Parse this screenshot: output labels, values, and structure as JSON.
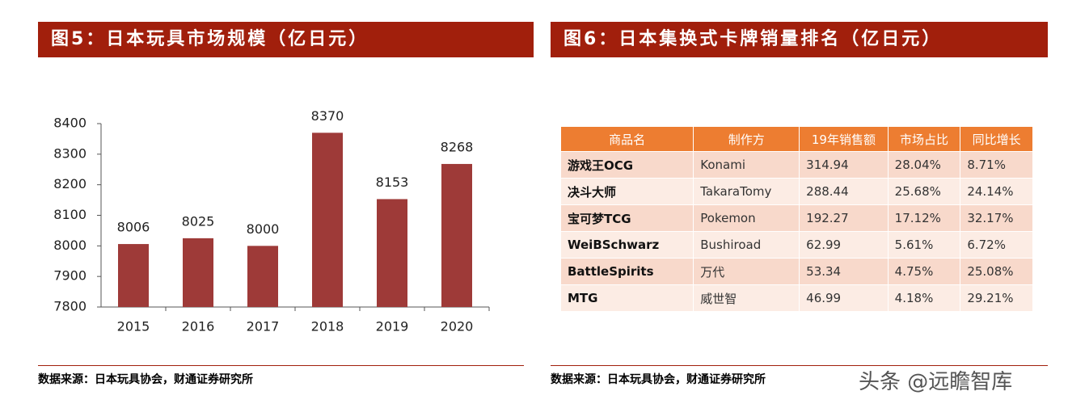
{
  "chart_data": {
    "type": "bar",
    "title": "图5：日本玩具市场规模（亿日元）",
    "categories": [
      "2015",
      "2016",
      "2017",
      "2018",
      "2019",
      "2020"
    ],
    "values": [
      8006,
      8025,
      8000,
      8370,
      8153,
      8268
    ],
    "color": "#9e3a38",
    "ylim": [
      7800,
      8400
    ],
    "yticks": [
      7800,
      7900,
      8000,
      8100,
      8200,
      8300,
      8400
    ],
    "grid": false
  },
  "table": {
    "title": "图6：日本集换式卡牌销量排名（亿日元）",
    "columns": [
      "商品名",
      "制作方",
      "19年销售额",
      "市场占比",
      "同比增长"
    ],
    "rows": [
      [
        "游戏王OCG",
        "Konami",
        "314.94",
        "28.04%",
        "8.71%"
      ],
      [
        "决斗大师",
        "TakaraTomy",
        "288.44",
        "25.68%",
        "24.14%"
      ],
      [
        "宝可梦TCG",
        "Pokemon",
        "192.27",
        "17.12%",
        "32.17%"
      ],
      [
        "WeiBSchwarz",
        "Bushiroad",
        "62.99",
        "5.61%",
        "6.72%"
      ],
      [
        "BattleSpirits",
        "万代",
        "53.34",
        "4.75%",
        "25.08%"
      ],
      [
        "MTG",
        "威世智",
        "46.99",
        "4.18%",
        "29.21%"
      ]
    ]
  },
  "sources": [
    "数据来源：日本玩具协会，财通证券研究所",
    "数据来源：日本玩具协会，财通证券研究所"
  ],
  "watermark": "头条 @远瞻智库"
}
